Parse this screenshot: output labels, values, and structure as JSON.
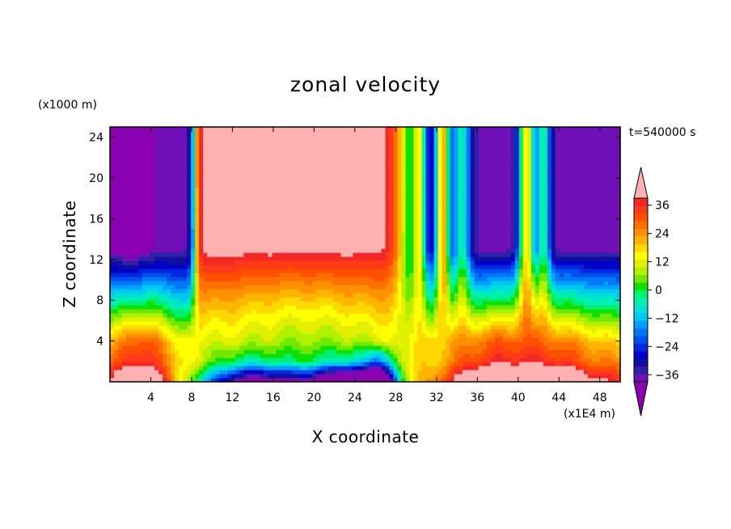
{
  "chart_data": {
    "type": "heatmap",
    "title": "zonal velocity",
    "xlabel": "X coordinate",
    "ylabel": "Z coordinate",
    "x_unit": "(x1E4 m)",
    "y_unit": "(x1000 m)",
    "time_label": "t=540000 s",
    "xlim": [
      0,
      50
    ],
    "ylim": [
      0,
      25
    ],
    "x_ticks": [
      4,
      8,
      12,
      16,
      20,
      24,
      28,
      32,
      36,
      40,
      44,
      48
    ],
    "y_ticks": [
      4,
      8,
      12,
      16,
      20,
      24
    ],
    "colorbar": {
      "levels": [
        -42,
        -39,
        -36,
        -33,
        -30,
        -27,
        -24,
        -21,
        -18,
        -15,
        -12,
        -9,
        -6,
        -3,
        0,
        3,
        6,
        9,
        12,
        15,
        18,
        21,
        24,
        27,
        30,
        33,
        36,
        39,
        42
      ],
      "labeled_levels": [
        36,
        24,
        12,
        0,
        -12,
        -24,
        -36
      ],
      "extend": "both",
      "colors": [
        "#8a00b0",
        "#7010b8",
        "#3020a8",
        "#1010a0",
        "#0000c8",
        "#0028e0",
        "#0050f0",
        "#0078f8",
        "#00a0ff",
        "#00c8f0",
        "#00e0d8",
        "#00f0b0",
        "#00f070",
        "#10e000",
        "#70e800",
        "#b0f000",
        "#e0f000",
        "#ffff00",
        "#ffd800",
        "#ffb400",
        "#ff9000",
        "#ff7000",
        "#ff5000",
        "#ff3a18",
        "#f52828",
        "#ffb0b0"
      ]
    },
    "description_fields": {
      "westerly_core_x": [
        9,
        28
      ],
      "easterly_core_x": [
        34,
        50
      ],
      "velocity_range": [
        -42,
        42
      ]
    }
  }
}
